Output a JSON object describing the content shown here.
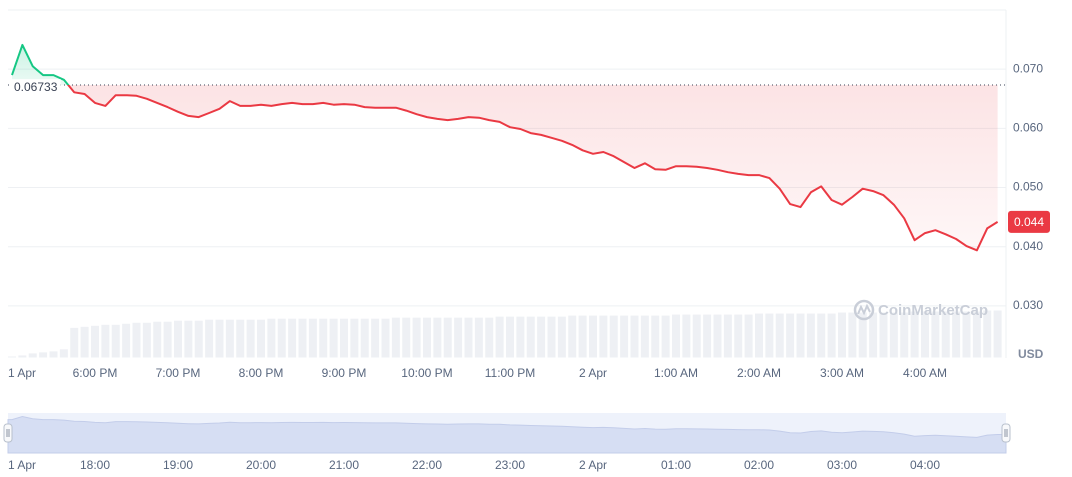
{
  "chart_data": {
    "type": "line",
    "x": [
      17,
      17.125,
      17.25,
      17.375,
      17.5,
      17.625,
      17.75,
      17.875,
      18,
      18.125,
      18.25,
      18.375,
      18.5,
      18.625,
      18.75,
      18.875,
      19,
      19.125,
      19.25,
      19.375,
      19.5,
      19.625,
      19.75,
      19.875,
      20,
      20.125,
      20.25,
      20.375,
      20.5,
      20.625,
      20.75,
      20.875,
      21,
      21.125,
      21.25,
      21.375,
      21.5,
      21.625,
      21.75,
      21.875,
      22,
      22.125,
      22.25,
      22.375,
      22.5,
      22.625,
      22.75,
      22.875,
      23,
      23.125,
      23.25,
      23.375,
      23.5,
      23.625,
      23.75,
      23.875,
      24,
      24.125,
      24.25,
      24.375,
      24.5,
      24.625,
      24.75,
      24.875,
      25,
      25.125,
      25.25,
      25.375,
      25.5,
      25.625,
      25.75,
      25.875,
      26,
      26.125,
      26.25,
      26.375,
      26.5,
      26.625,
      26.75,
      26.875,
      27,
      27.125,
      27.25,
      27.375,
      27.5,
      27.625,
      27.75,
      27.875,
      28,
      28.125,
      28.25,
      28.375,
      28.5,
      28.625,
      28.75,
      28.875
    ],
    "values": [
      0.069,
      0.0741,
      0.0705,
      0.069,
      0.069,
      0.0682,
      0.0661,
      0.0658,
      0.0643,
      0.0638,
      0.0656,
      0.0656,
      0.0655,
      0.065,
      0.0643,
      0.0636,
      0.0628,
      0.0621,
      0.0619,
      0.0626,
      0.0633,
      0.0646,
      0.0638,
      0.0638,
      0.064,
      0.0638,
      0.0641,
      0.0643,
      0.0641,
      0.0641,
      0.0643,
      0.064,
      0.0641,
      0.064,
      0.0636,
      0.0635,
      0.0635,
      0.0635,
      0.063,
      0.0624,
      0.0619,
      0.0616,
      0.0614,
      0.0616,
      0.0619,
      0.0618,
      0.0614,
      0.0611,
      0.0602,
      0.0599,
      0.0592,
      0.0589,
      0.0584,
      0.0579,
      0.0572,
      0.0563,
      0.0557,
      0.056,
      0.0553,
      0.0543,
      0.0533,
      0.0541,
      0.0531,
      0.053,
      0.0536,
      0.0536,
      0.0535,
      0.0533,
      0.053,
      0.0526,
      0.0523,
      0.0521,
      0.0521,
      0.0516,
      0.0498,
      0.0472,
      0.0467,
      0.0492,
      0.0502,
      0.0479,
      0.0471,
      0.0484,
      0.0498,
      0.0494,
      0.0487,
      0.0471,
      0.0448,
      0.0411,
      0.0423,
      0.0428,
      0.0421,
      0.0413,
      0.0401,
      0.0394,
      0.0431,
      0.0442
    ],
    "volume": [
      2,
      3,
      5,
      6,
      7,
      9,
      30,
      31,
      32,
      33,
      33,
      34,
      35,
      35,
      36,
      36,
      37,
      37,
      37,
      38,
      38,
      38,
      38,
      38,
      38,
      39,
      39,
      39,
      39,
      39,
      39,
      39,
      39,
      39,
      39,
      39,
      39,
      40,
      40,
      40,
      40,
      40,
      40,
      40,
      40,
      40,
      40,
      41,
      41,
      41,
      41,
      41,
      41,
      41,
      42,
      42,
      42,
      42,
      42,
      42,
      42,
      42,
      42,
      42,
      43,
      43,
      43,
      43,
      43,
      43,
      43,
      43,
      44,
      44,
      44,
      44,
      44,
      44,
      44,
      44,
      45,
      45,
      45,
      45,
      45,
      45,
      45,
      46,
      46,
      46,
      46,
      46,
      46,
      46,
      47,
      47
    ],
    "color_up": "#16c784",
    "color_down": "#ea3943",
    "volume_color": "#eef0f4",
    "reference": 0.06733,
    "last_value_label": "0.044",
    "y_axis_label": "USD",
    "watermark": "CoinMarketCap",
    "ylim": [
      0.0212,
      0.08
    ],
    "yticks": [
      {
        "value": 0.03,
        "label": "0.030"
      },
      {
        "value": 0.04,
        "label": "0.040"
      },
      {
        "value": 0.05,
        "label": "0.050"
      },
      {
        "value": 0.06,
        "label": "0.060"
      },
      {
        "value": 0.07,
        "label": "0.070"
      }
    ],
    "xlim": [
      16.952,
      28.976
    ],
    "xticks": [
      {
        "value": 17,
        "label": "1 Apr"
      },
      {
        "value": 18,
        "label": "6:00 PM"
      },
      {
        "value": 19,
        "label": "7:00 PM"
      },
      {
        "value": 20,
        "label": "8:00 PM"
      },
      {
        "value": 21,
        "label": "9:00 PM"
      },
      {
        "value": 22,
        "label": "10:00 PM"
      },
      {
        "value": 23,
        "label": "11:00 PM"
      },
      {
        "value": 24,
        "label": "2 Apr"
      },
      {
        "value": 25,
        "label": "1:00 AM"
      },
      {
        "value": 26,
        "label": "2:00 AM"
      },
      {
        "value": 27,
        "label": "3:00 AM"
      },
      {
        "value": 28,
        "label": "4:00 AM"
      }
    ],
    "navigator_xticks": [
      {
        "value": 17,
        "label": "1 Apr"
      },
      {
        "value": 18,
        "label": "18:00"
      },
      {
        "value": 19,
        "label": "19:00"
      },
      {
        "value": 20,
        "label": "20:00"
      },
      {
        "value": 21,
        "label": "21:00"
      },
      {
        "value": 22,
        "label": "22:00"
      },
      {
        "value": 23,
        "label": "23:00"
      },
      {
        "value": 24,
        "label": "2 Apr"
      },
      {
        "value": 25,
        "label": "01:00"
      },
      {
        "value": 26,
        "label": "02:00"
      },
      {
        "value": 27,
        "label": "03:00"
      },
      {
        "value": 28,
        "label": "04:00"
      }
    ],
    "grid": true
  }
}
